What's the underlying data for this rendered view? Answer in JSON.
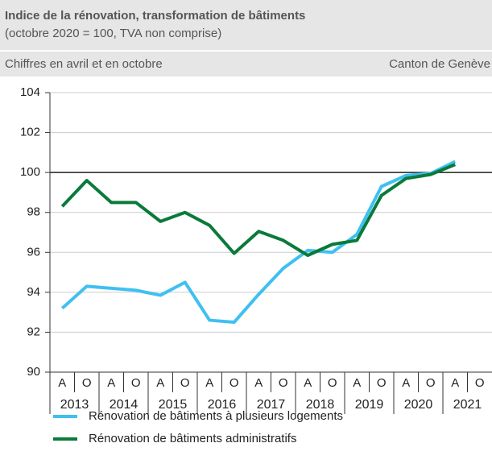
{
  "header": {
    "title": "Indice de la rénovation, transformation de bâtiments",
    "subtitle": "(octobre 2020 = 100, TVA non comprise)",
    "note_left": "Chiffres en avril et en octobre",
    "note_right": "Canton de Genève"
  },
  "chart_data": {
    "type": "line",
    "categories": [
      "A",
      "O",
      "A",
      "O",
      "A",
      "O",
      "A",
      "O",
      "A",
      "O",
      "A",
      "O",
      "A",
      "O",
      "A",
      "O",
      "A",
      "O"
    ],
    "years": [
      "2013",
      "2014",
      "2015",
      "2016",
      "2017",
      "2018",
      "2019",
      "2020",
      "2021"
    ],
    "series": [
      {
        "name": "Rénovation de bâtiments à plusieurs logements",
        "color": "#3fc0f0",
        "values": [
          93.2,
          94.3,
          94.2,
          94.1,
          93.85,
          94.5,
          92.6,
          92.5,
          93.9,
          95.2,
          96.1,
          96.0,
          96.9,
          99.3,
          99.85,
          99.95,
          100.55,
          null
        ]
      },
      {
        "name": "Rénovation de bâtiments administratifs",
        "color": "#0a7a3a",
        "values": [
          98.3,
          99.6,
          98.5,
          98.5,
          97.55,
          98.0,
          97.35,
          95.95,
          97.05,
          96.6,
          95.85,
          96.4,
          96.6,
          98.85,
          99.7,
          99.9,
          100.4,
          null
        ]
      }
    ],
    "ylim": [
      90,
      104
    ],
    "yticks": [
      90,
      92,
      94,
      96,
      98,
      100,
      102,
      104
    ],
    "grid": true,
    "reference_line": 100
  }
}
